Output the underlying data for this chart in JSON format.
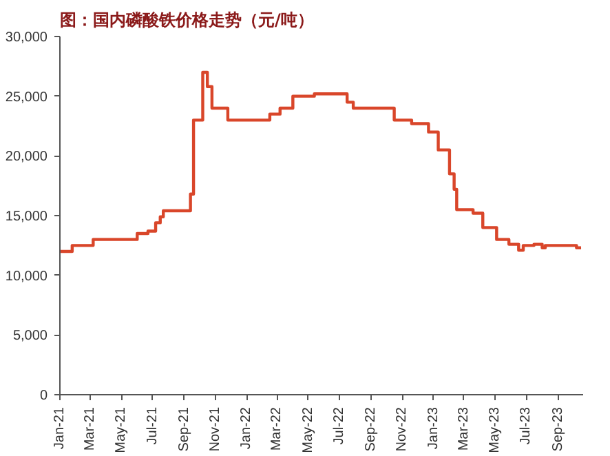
{
  "chart_data": {
    "type": "step",
    "title": "图：国内磷酸铁价格走势（元/吨）",
    "x": [
      "2021-01-01",
      "2021-01-25",
      "2021-03-07",
      "2021-06-01",
      "2021-06-22",
      "2021-07-07",
      "2021-07-16",
      "2021-07-22",
      "2021-09-13",
      "2021-09-19",
      "2021-10-07",
      "2021-10-16",
      "2021-10-25",
      "2021-11-25",
      "2022-02-15",
      "2022-03-07",
      "2022-04-01",
      "2022-05-13",
      "2022-07-16",
      "2022-07-28",
      "2022-10-16",
      "2022-11-19",
      "2022-12-22",
      "2023-01-10",
      "2023-02-01",
      "2023-02-10",
      "2023-02-15",
      "2023-03-19",
      "2023-04-07",
      "2023-05-04",
      "2023-05-28",
      "2023-06-16",
      "2023-06-25",
      "2023-07-16",
      "2023-08-01",
      "2023-08-07",
      "2023-10-07",
      "2023-10-16"
    ],
    "series": [
      {
        "color": "#d9462a",
        "values": [
          12000,
          12500,
          13000,
          13500,
          13700,
          14400,
          14900,
          15400,
          16800,
          23000,
          27000,
          25800,
          24000,
          23000,
          23500,
          24000,
          25000,
          25200,
          24500,
          24000,
          23000,
          22700,
          22000,
          20500,
          18500,
          17200,
          15500,
          15200,
          14000,
          13000,
          12600,
          12100,
          12500,
          12600,
          12300,
          12500,
          12300,
          12300
        ]
      }
    ],
    "xlim": [
      "2021-01-01",
      "2023-10-20"
    ],
    "xticks": [
      {
        "value": "2021-01-01",
        "label": "Jan-21"
      },
      {
        "value": "2021-03-01",
        "label": "Mar-21"
      },
      {
        "value": "2021-05-01",
        "label": "May-21"
      },
      {
        "value": "2021-07-01",
        "label": "Jul-21"
      },
      {
        "value": "2021-09-01",
        "label": "Sep-21"
      },
      {
        "value": "2021-11-01",
        "label": "Nov-21"
      },
      {
        "value": "2022-01-01",
        "label": "Jan-22"
      },
      {
        "value": "2022-03-01",
        "label": "Mar-22"
      },
      {
        "value": "2022-05-01",
        "label": "May-22"
      },
      {
        "value": "2022-07-01",
        "label": "Jul-22"
      },
      {
        "value": "2022-09-01",
        "label": "Sep-22"
      },
      {
        "value": "2022-11-01",
        "label": "Nov-22"
      },
      {
        "value": "2023-01-01",
        "label": "Jan-23"
      },
      {
        "value": "2023-03-01",
        "label": "Mar-23"
      },
      {
        "value": "2023-05-01",
        "label": "May-23"
      },
      {
        "value": "2023-07-01",
        "label": "Jul-23"
      },
      {
        "value": "2023-09-01",
        "label": "Sep-23"
      }
    ],
    "ylim": [
      0,
      30000
    ],
    "yticks": [
      {
        "value": 0,
        "label": "0"
      },
      {
        "value": 5000,
        "label": "5,000"
      },
      {
        "value": 10000,
        "label": "10,000"
      },
      {
        "value": 15000,
        "label": "15,000"
      },
      {
        "value": 20000,
        "label": "20,000"
      },
      {
        "value": 25000,
        "label": "25,000"
      },
      {
        "value": 30000,
        "label": "30,000"
      }
    ],
    "grid": false,
    "line_style": "solid"
  }
}
